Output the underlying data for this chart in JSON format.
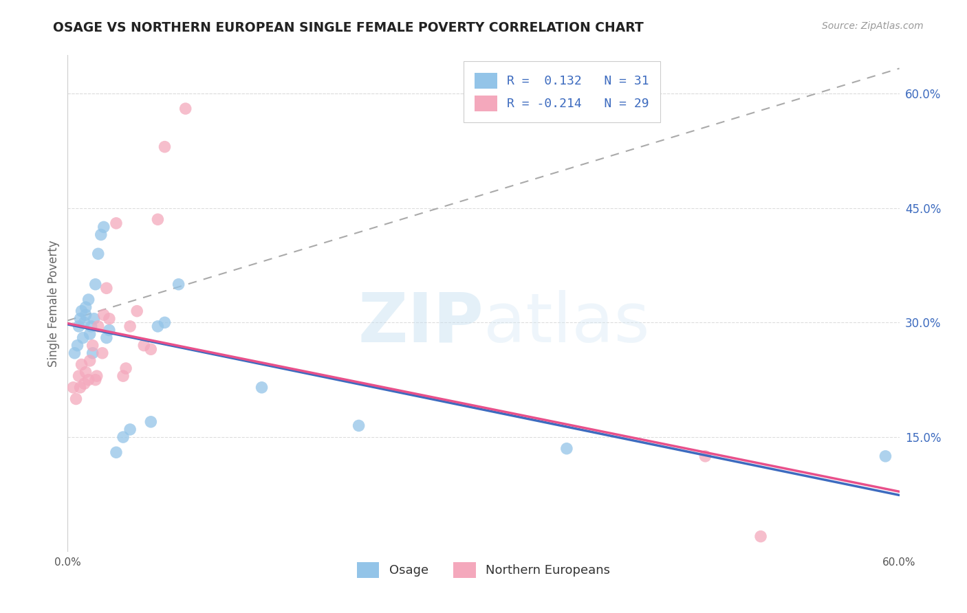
{
  "title": "OSAGE VS NORTHERN EUROPEAN SINGLE FEMALE POVERTY CORRELATION CHART",
  "source": "Source: ZipAtlas.com",
  "ylabel": "Single Female Poverty",
  "xlim": [
    0.0,
    0.6
  ],
  "ylim": [
    0.0,
    0.65
  ],
  "ytick_labels": [
    "15.0%",
    "30.0%",
    "45.0%",
    "60.0%"
  ],
  "ytick_values": [
    0.15,
    0.3,
    0.45,
    0.6
  ],
  "xtick_labels": [
    "0.0%",
    "",
    "",
    "",
    "",
    "",
    "60.0%"
  ],
  "xtick_values": [
    0.0,
    0.1,
    0.2,
    0.3,
    0.4,
    0.5,
    0.6
  ],
  "osage_color": "#93c4e8",
  "northern_color": "#f4a8bc",
  "trendline_osage_color": "#3d6bbf",
  "trendline_northern_color": "#e8508a",
  "trendline_dashed_color": "#aaaaaa",
  "watermark_text": "ZIP",
  "watermark_text2": "atlas",
  "legend_label1": "R =  0.132   N = 31",
  "legend_label2": "R = -0.214   N = 29",
  "osage_x": [
    0.005,
    0.007,
    0.008,
    0.009,
    0.01,
    0.011,
    0.012,
    0.013,
    0.013,
    0.015,
    0.016,
    0.017,
    0.018,
    0.019,
    0.02,
    0.022,
    0.024,
    0.026,
    0.028,
    0.03,
    0.035,
    0.04,
    0.045,
    0.06,
    0.065,
    0.07,
    0.08,
    0.14,
    0.21,
    0.36,
    0.59
  ],
  "osage_y": [
    0.26,
    0.27,
    0.295,
    0.305,
    0.315,
    0.28,
    0.3,
    0.31,
    0.32,
    0.33,
    0.285,
    0.295,
    0.26,
    0.305,
    0.35,
    0.39,
    0.415,
    0.425,
    0.28,
    0.29,
    0.13,
    0.15,
    0.16,
    0.17,
    0.295,
    0.3,
    0.35,
    0.215,
    0.165,
    0.135,
    0.125
  ],
  "northern_x": [
    0.004,
    0.006,
    0.008,
    0.009,
    0.01,
    0.012,
    0.013,
    0.015,
    0.016,
    0.018,
    0.02,
    0.021,
    0.022,
    0.025,
    0.026,
    0.028,
    0.03,
    0.035,
    0.04,
    0.042,
    0.045,
    0.05,
    0.055,
    0.06,
    0.065,
    0.07,
    0.085,
    0.46,
    0.5
  ],
  "northern_y": [
    0.215,
    0.2,
    0.23,
    0.215,
    0.245,
    0.22,
    0.235,
    0.225,
    0.25,
    0.27,
    0.225,
    0.23,
    0.295,
    0.26,
    0.31,
    0.345,
    0.305,
    0.43,
    0.23,
    0.24,
    0.295,
    0.315,
    0.27,
    0.265,
    0.435,
    0.53,
    0.58,
    0.125,
    0.02
  ]
}
